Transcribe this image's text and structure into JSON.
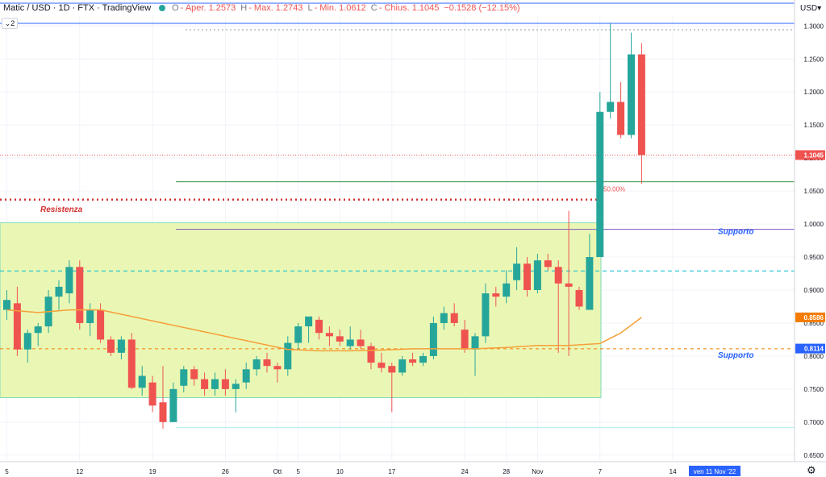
{
  "header": {
    "symbol": "Matic / USD · 1D · FTX · TradingView",
    "open_label": "O",
    "open_value": "- Aper. 1.2573",
    "high_label": "H",
    "high_value": "- Max. 1.2743",
    "low_label": "L",
    "low_value": "- Min. 1.0612",
    "close_label": "C",
    "close_value": "- Chius. 1.1045",
    "change_value": "−0.1528 (−12.15%)",
    "collapse_label": "2",
    "status_dot_color": "#26a69a"
  },
  "price_axis": {
    "currency": "USD",
    "settings_icon": "gear-icon"
  },
  "colors": {
    "up": "#26a69a",
    "down": "#ef5350",
    "ma": "#f5a03a",
    "zone_fill": "#eaf7b4",
    "zone_border": "#7fd9c0"
  },
  "chart_data": {
    "type": "candlestick",
    "y_range": [
      0.64,
      1.315
    ],
    "y_ticks": [
      "1.3000",
      "1.2500",
      "1.2000",
      "1.1500",
      "1.1000",
      "1.0500",
      "1.0000",
      "0.9500",
      "0.9000",
      "0.8500",
      "0.8000",
      "0.7500",
      "0.7000",
      "0.6500"
    ],
    "x_ticks": [
      "5",
      "12",
      "19",
      "26",
      "Ott",
      "5",
      "10",
      "17",
      "24",
      "28",
      "Nov",
      "7",
      "14"
    ],
    "crosshair_label": "ven 11 Nov '22",
    "price_badges": [
      {
        "value": "1.1045",
        "color": "#ef5350"
      },
      {
        "value": "0.8586",
        "color": "#f57c00"
      },
      {
        "value": "0.8114",
        "color": "#2962ff"
      }
    ],
    "annotations": {
      "resistance": {
        "text": "Resistenza",
        "level": 1.037
      },
      "fib": {
        "text": "50.00%",
        "level": 1.064
      },
      "support_high": {
        "text": "Supporto",
        "level": 0.992
      },
      "support_low": {
        "text": "Supporto",
        "level": 0.811
      },
      "dashed_cyan_level": 0.929,
      "box_high": 1.002,
      "box_low": 0.737
    },
    "candles": [
      {
        "o": 0.87,
        "h": 0.9,
        "l": 0.855,
        "c": 0.885
      },
      {
        "o": 0.88,
        "h": 0.905,
        "l": 0.8,
        "c": 0.81
      },
      {
        "o": 0.81,
        "h": 0.84,
        "l": 0.79,
        "c": 0.835
      },
      {
        "o": 0.835,
        "h": 0.85,
        "l": 0.815,
        "c": 0.845
      },
      {
        "o": 0.845,
        "h": 0.9,
        "l": 0.835,
        "c": 0.89
      },
      {
        "o": 0.89,
        "h": 0.915,
        "l": 0.87,
        "c": 0.905
      },
      {
        "o": 0.895,
        "h": 0.945,
        "l": 0.88,
        "c": 0.935
      },
      {
        "o": 0.935,
        "h": 0.945,
        "l": 0.84,
        "c": 0.85
      },
      {
        "o": 0.85,
        "h": 0.88,
        "l": 0.83,
        "c": 0.87
      },
      {
        "o": 0.87,
        "h": 0.88,
        "l": 0.82,
        "c": 0.825
      },
      {
        "o": 0.825,
        "h": 0.83,
        "l": 0.8,
        "c": 0.805
      },
      {
        "o": 0.805,
        "h": 0.83,
        "l": 0.795,
        "c": 0.825
      },
      {
        "o": 0.825,
        "h": 0.835,
        "l": 0.75,
        "c": 0.752
      },
      {
        "o": 0.752,
        "h": 0.785,
        "l": 0.74,
        "c": 0.77
      },
      {
        "o": 0.76,
        "h": 0.77,
        "l": 0.715,
        "c": 0.725
      },
      {
        "o": 0.73,
        "h": 0.785,
        "l": 0.69,
        "c": 0.7
      },
      {
        "o": 0.7,
        "h": 0.76,
        "l": 0.7,
        "c": 0.75
      },
      {
        "o": 0.755,
        "h": 0.785,
        "l": 0.745,
        "c": 0.78
      },
      {
        "o": 0.78,
        "h": 0.785,
        "l": 0.755,
        "c": 0.765
      },
      {
        "o": 0.765,
        "h": 0.775,
        "l": 0.74,
        "c": 0.75
      },
      {
        "o": 0.75,
        "h": 0.775,
        "l": 0.74,
        "c": 0.765
      },
      {
        "o": 0.765,
        "h": 0.78,
        "l": 0.74,
        "c": 0.75
      },
      {
        "o": 0.75,
        "h": 0.765,
        "l": 0.715,
        "c": 0.758
      },
      {
        "o": 0.76,
        "h": 0.79,
        "l": 0.75,
        "c": 0.78
      },
      {
        "o": 0.78,
        "h": 0.8,
        "l": 0.77,
        "c": 0.795
      },
      {
        "o": 0.795,
        "h": 0.805,
        "l": 0.775,
        "c": 0.785
      },
      {
        "o": 0.785,
        "h": 0.79,
        "l": 0.76,
        "c": 0.78
      },
      {
        "o": 0.78,
        "h": 0.83,
        "l": 0.77,
        "c": 0.82
      },
      {
        "o": 0.82,
        "h": 0.85,
        "l": 0.81,
        "c": 0.845
      },
      {
        "o": 0.845,
        "h": 0.855,
        "l": 0.82,
        "c": 0.86
      },
      {
        "o": 0.855,
        "h": 0.86,
        "l": 0.825,
        "c": 0.835
      },
      {
        "o": 0.835,
        "h": 0.845,
        "l": 0.815,
        "c": 0.83
      },
      {
        "o": 0.83,
        "h": 0.84,
        "l": 0.815,
        "c": 0.822
      },
      {
        "o": 0.815,
        "h": 0.845,
        "l": 0.81,
        "c": 0.825
      },
      {
        "o": 0.825,
        "h": 0.84,
        "l": 0.81,
        "c": 0.815
      },
      {
        "o": 0.815,
        "h": 0.82,
        "l": 0.78,
        "c": 0.79
      },
      {
        "o": 0.79,
        "h": 0.805,
        "l": 0.775,
        "c": 0.782
      },
      {
        "o": 0.785,
        "h": 0.79,
        "l": 0.715,
        "c": 0.775
      },
      {
        "o": 0.775,
        "h": 0.8,
        "l": 0.77,
        "c": 0.795
      },
      {
        "o": 0.795,
        "h": 0.805,
        "l": 0.785,
        "c": 0.79
      },
      {
        "o": 0.79,
        "h": 0.805,
        "l": 0.785,
        "c": 0.8
      },
      {
        "o": 0.8,
        "h": 0.86,
        "l": 0.795,
        "c": 0.85
      },
      {
        "o": 0.85,
        "h": 0.875,
        "l": 0.84,
        "c": 0.865
      },
      {
        "o": 0.865,
        "h": 0.88,
        "l": 0.845,
        "c": 0.85
      },
      {
        "o": 0.84,
        "h": 0.855,
        "l": 0.805,
        "c": 0.81
      },
      {
        "o": 0.81,
        "h": 0.835,
        "l": 0.77,
        "c": 0.83
      },
      {
        "o": 0.83,
        "h": 0.91,
        "l": 0.82,
        "c": 0.895
      },
      {
        "o": 0.895,
        "h": 0.905,
        "l": 0.875,
        "c": 0.89
      },
      {
        "o": 0.89,
        "h": 0.93,
        "l": 0.88,
        "c": 0.91
      },
      {
        "o": 0.915,
        "h": 0.965,
        "l": 0.9,
        "c": 0.94
      },
      {
        "o": 0.94,
        "h": 0.95,
        "l": 0.89,
        "c": 0.9
      },
      {
        "o": 0.9,
        "h": 0.955,
        "l": 0.895,
        "c": 0.945
      },
      {
        "o": 0.945,
        "h": 0.955,
        "l": 0.93,
        "c": 0.935
      },
      {
        "o": 0.935,
        "h": 0.945,
        "l": 0.805,
        "c": 0.91
      },
      {
        "o": 0.91,
        "h": 1.02,
        "l": 0.8,
        "c": 0.905
      },
      {
        "o": 0.9,
        "h": 0.905,
        "l": 0.87,
        "c": 0.875
      },
      {
        "o": 0.87,
        "h": 0.985,
        "l": 0.87,
        "c": 0.95
      },
      {
        "o": 0.95,
        "h": 1.2,
        "l": 0.95,
        "c": 1.17
      },
      {
        "o": 1.17,
        "h": 1.305,
        "l": 1.16,
        "c": 1.185
      },
      {
        "o": 1.185,
        "h": 1.215,
        "l": 1.13,
        "c": 1.135
      },
      {
        "o": 1.135,
        "h": 1.29,
        "l": 1.13,
        "c": 1.257
      },
      {
        "o": 1.257,
        "h": 1.274,
        "l": 1.061,
        "c": 1.1045
      }
    ],
    "ma": [
      {
        "i": 0,
        "v": 0.87
      },
      {
        "i": 3,
        "v": 0.866
      },
      {
        "i": 6,
        "v": 0.87
      },
      {
        "i": 9,
        "v": 0.87
      },
      {
        "i": 12,
        "v": 0.86
      },
      {
        "i": 15,
        "v": 0.85
      },
      {
        "i": 18,
        "v": 0.84
      },
      {
        "i": 21,
        "v": 0.83
      },
      {
        "i": 24,
        "v": 0.82
      },
      {
        "i": 27,
        "v": 0.81
      },
      {
        "i": 30,
        "v": 0.808
      },
      {
        "i": 33,
        "v": 0.808
      },
      {
        "i": 36,
        "v": 0.809
      },
      {
        "i": 39,
        "v": 0.811
      },
      {
        "i": 42,
        "v": 0.811
      },
      {
        "i": 45,
        "v": 0.811
      },
      {
        "i": 48,
        "v": 0.813
      },
      {
        "i": 51,
        "v": 0.816
      },
      {
        "i": 54,
        "v": 0.816
      },
      {
        "i": 57,
        "v": 0.819
      },
      {
        "i": 59,
        "v": 0.835
      },
      {
        "i": 61,
        "v": 0.8586
      }
    ]
  }
}
